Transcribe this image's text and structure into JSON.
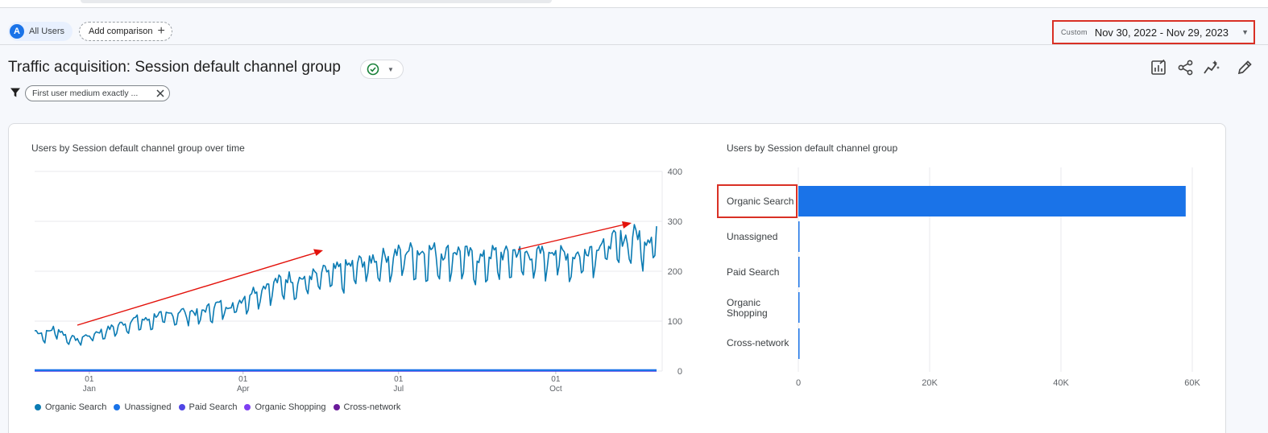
{
  "segments": {
    "badge_letter": "A",
    "all_users": "All Users",
    "add_comparison": "Add comparison",
    "add_icon": "plus-icon"
  },
  "date_range": {
    "label": "Custom",
    "value": "Nov 30, 2022 - Nov 29, 2023"
  },
  "report": {
    "title": "Traffic acquisition: Session default channel group",
    "status_icon": "check-circle-icon"
  },
  "filter": {
    "chip_text": "First user medium exactly ...",
    "icon": "filter-icon"
  },
  "toolbar": {
    "icons": [
      "customize-report-icon",
      "share-icon",
      "insights-icon",
      "edit-icon"
    ]
  },
  "colors": {
    "accent": "#1a73e8",
    "highlight": "#d93025",
    "annotation": "#e3120b"
  },
  "chart_data": [
    {
      "type": "line",
      "title": "Users by Session default channel group over time",
      "x_range": [
        "2022-11-30",
        "2023-11-29"
      ],
      "x_ticks": [
        {
          "day": "01",
          "month": "Jan"
        },
        {
          "day": "01",
          "month": "Apr"
        },
        {
          "day": "01",
          "month": "Jul"
        },
        {
          "day": "01",
          "month": "Oct"
        }
      ],
      "y_ticks": [
        "400",
        "300",
        "200",
        "100",
        "0"
      ],
      "ylim": [
        0,
        400
      ],
      "grid": true,
      "legend_placement": "bottom",
      "series": [
        {
          "name": "Organic Search",
          "color": "#0b7bb3",
          "weekly_values": [
            78,
            72,
            85,
            70,
            62,
            68,
            75,
            80,
            88,
            95,
            102,
            98,
            110,
            108,
            115,
            118,
            112,
            122,
            130,
            128,
            135,
            150,
            162,
            170,
            175,
            182,
            178,
            185,
            190,
            195,
            198,
            205,
            212,
            218,
            222,
            225,
            232,
            235,
            230,
            236,
            228,
            234,
            230,
            222,
            218,
            230,
            225,
            232,
            228,
            226,
            230,
            238,
            228,
            224,
            235,
            245,
            250,
            255,
            258,
            268,
            255,
            278
          ]
        },
        {
          "name": "Unassigned",
          "color": "#1a73e8",
          "weekly_values": [
            1,
            1,
            1,
            1,
            1,
            1,
            1,
            1,
            1,
            1,
            1,
            1,
            1,
            1,
            1,
            1,
            1,
            1,
            1,
            1,
            1,
            1,
            1,
            1,
            1,
            1,
            1,
            1,
            1,
            1,
            1,
            1,
            1,
            1,
            1,
            1,
            1,
            1,
            1,
            1,
            1,
            1,
            1,
            1,
            1,
            1,
            1,
            1,
            1,
            1,
            1,
            1,
            1,
            1,
            1,
            1,
            1,
            1,
            1,
            1,
            1,
            1
          ]
        },
        {
          "name": "Paid Search",
          "color": "#4f46e5",
          "weekly_values": [
            0,
            0,
            0,
            0,
            0,
            0,
            0,
            0,
            0,
            0,
            0,
            0,
            0,
            0,
            0,
            0,
            0,
            0,
            0,
            0,
            0,
            0,
            0,
            0,
            0,
            0,
            0,
            0,
            0,
            0,
            0,
            0,
            0,
            0,
            0,
            0,
            0,
            0,
            0,
            0,
            0,
            0,
            0,
            0,
            0,
            0,
            0,
            0,
            0,
            0,
            0,
            0,
            0,
            0,
            0,
            0,
            0,
            0,
            0,
            0,
            0,
            0
          ]
        },
        {
          "name": "Organic Shopping",
          "color": "#7e3ff2",
          "weekly_values": [
            0,
            0,
            0,
            0,
            0,
            0,
            0,
            0,
            0,
            0,
            0,
            0,
            0,
            0,
            0,
            0,
            0,
            0,
            0,
            0,
            0,
            0,
            0,
            0,
            0,
            0,
            0,
            0,
            0,
            0,
            0,
            0,
            0,
            0,
            0,
            0,
            0,
            0,
            0,
            0,
            0,
            0,
            0,
            0,
            0,
            0,
            0,
            0,
            0,
            0,
            0,
            0,
            0,
            0,
            0,
            0,
            0,
            0,
            0,
            0,
            0,
            0
          ]
        },
        {
          "name": "Cross-network",
          "color": "#6a1b9a",
          "weekly_values": [
            0,
            0,
            0,
            0,
            0,
            0,
            0,
            0,
            0,
            0,
            0,
            0,
            0,
            0,
            0,
            0,
            0,
            0,
            0,
            0,
            0,
            0,
            0,
            0,
            0,
            0,
            0,
            0,
            0,
            0,
            0,
            0,
            0,
            0,
            0,
            0,
            0,
            0,
            0,
            0,
            0,
            0,
            0,
            0,
            0,
            0,
            0,
            0,
            0,
            0,
            0,
            0,
            0,
            0,
            0,
            0,
            0,
            0,
            0,
            0,
            0,
            0
          ]
        }
      ]
    },
    {
      "type": "bar",
      "orientation": "horizontal",
      "title": "Users by Session default channel group",
      "categories": [
        "Organic Search",
        "Unassigned",
        "Paid Search",
        "Organic Shopping",
        "Cross-network"
      ],
      "category_lines": [
        [
          "Organic Search"
        ],
        [
          "Unassigned"
        ],
        [
          "Paid Search"
        ],
        [
          "Organic",
          "Shopping"
        ],
        [
          "Cross-network"
        ]
      ],
      "values": [
        59000,
        40,
        5,
        2,
        1
      ],
      "x_ticks": [
        "0",
        "20K",
        "40K",
        "60K"
      ],
      "xlim": [
        0,
        60000
      ],
      "bar_color": "#1a73e8",
      "grid": true
    }
  ]
}
